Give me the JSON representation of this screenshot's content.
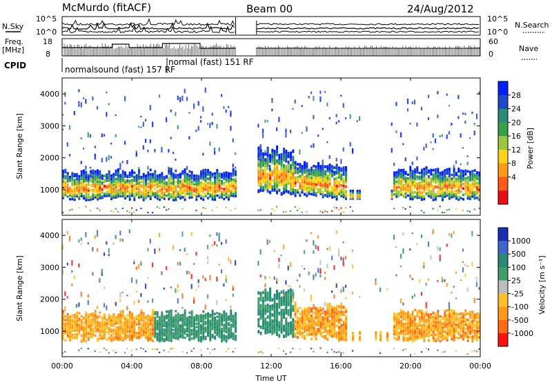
{
  "header": {
    "station": "McMurdo (fitACF)",
    "beam": "Beam 00",
    "date": "24/Aug/2012"
  },
  "strip": {
    "nsky_label": "N.Sky",
    "nsky_ticks": [
      "10^5",
      "10^0"
    ],
    "nsearch_label": "N.Search",
    "nsearch_ticks": [
      "10^5",
      "10^0"
    ],
    "freq_label_1": "Freq.",
    "freq_label_2": "[MHz]",
    "freq_ticks": [
      "18",
      "8"
    ],
    "nave_label": "Nave",
    "nave_ticks": [
      "60",
      "0"
    ],
    "cpid_label": "CPID",
    "cpid_1": "normalsound (fast) 157 RF",
    "cpid_2": "normal (fast) 151 RF"
  },
  "chart_data": [
    {
      "type": "heatmap",
      "name": "power",
      "ylabel": "Slant Range [km]",
      "y_ticks": [
        "4000",
        "3000",
        "2000",
        "1000"
      ],
      "ylim": [
        200,
        4500
      ],
      "colorbar_label": "Power [dB]",
      "colorbar_ticks": [
        "28",
        "24",
        "20",
        "16",
        "12",
        "8",
        "4"
      ],
      "colors": [
        "#0020ff",
        "#1f49c8",
        "#2a8a78",
        "#3aa048",
        "#9bc53a",
        "#ffd21a",
        "#ff9b1a",
        "#ff5a1a",
        "#e81010"
      ]
    },
    {
      "type": "heatmap",
      "name": "velocity",
      "ylabel": "Slant Range [km]",
      "y_ticks": [
        "4000",
        "3000",
        "2000",
        "1000"
      ],
      "ylim": [
        200,
        4500
      ],
      "colorbar_label": "Velocity [m s⁻¹]",
      "colorbar_ticks": [
        "1000",
        "500",
        "100",
        "25",
        "-25",
        "-100",
        "-500",
        "-1000"
      ],
      "colors": [
        "#1a2fb4",
        "#3e67c7",
        "#2a8a72",
        "#3f9e6a",
        "#bdbdbd",
        "#ffc02a",
        "#ff9a1a",
        "#ff6a14",
        "#ff1010"
      ]
    }
  ],
  "xaxis": {
    "label": "Time UT",
    "ticks": [
      "00:00",
      "04:00",
      "08:00",
      "12:00",
      "16:00",
      "20:00",
      "00:00"
    ]
  }
}
